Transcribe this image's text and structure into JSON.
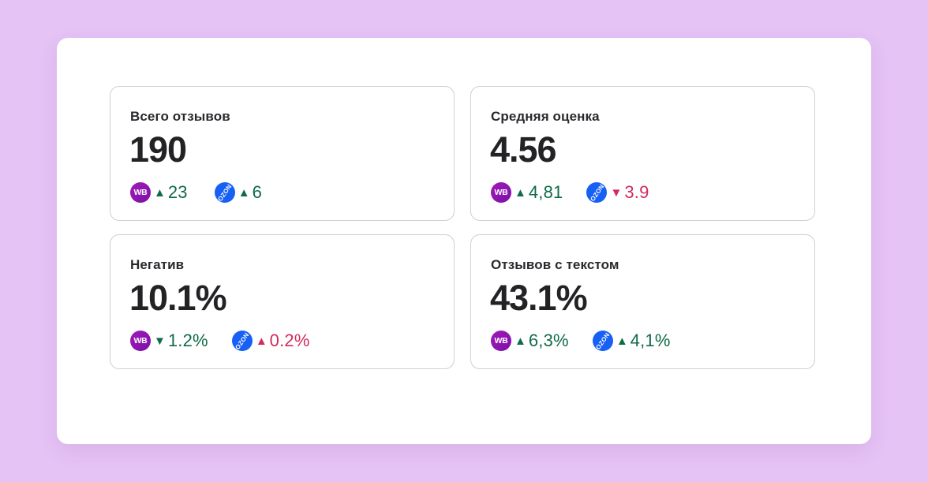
{
  "colors": {
    "background": "#e5c3f5",
    "panel": "#ffffff",
    "wb_badge": "#8e15ad",
    "ozon_badge": "#1660f3",
    "positive": "#0f6b47",
    "negative": "#d22a5a"
  },
  "cards": [
    {
      "title": "Всего отзывов",
      "value": "190",
      "stats": [
        {
          "platform": "WB",
          "direction": "up",
          "arrow": "▲",
          "delta": "23",
          "tone": "positive"
        },
        {
          "platform": "OZON",
          "direction": "up",
          "arrow": "▲",
          "delta": "6",
          "tone": "positive"
        }
      ]
    },
    {
      "title": "Средняя оценка",
      "value": "4.56",
      "stats": [
        {
          "platform": "WB",
          "direction": "up",
          "arrow": "▲",
          "delta": "4,81",
          "tone": "positive"
        },
        {
          "platform": "OZON",
          "direction": "down",
          "arrow": "▼",
          "delta": "3.9",
          "tone": "negative"
        }
      ]
    },
    {
      "title": "Негатив",
      "value": "10.1%",
      "stats": [
        {
          "platform": "WB",
          "direction": "down",
          "arrow": "▼",
          "delta": "1.2%",
          "tone": "positive"
        },
        {
          "platform": "OZON",
          "direction": "up",
          "arrow": "▲",
          "delta": "0.2%",
          "tone": "negative"
        }
      ]
    },
    {
      "title": "Отзывов с текстом",
      "value": "43.1%",
      "stats": [
        {
          "platform": "WB",
          "direction": "up",
          "arrow": "▲",
          "delta": "6,3%",
          "tone": "positive"
        },
        {
          "platform": "OZON",
          "direction": "up",
          "arrow": "▲",
          "delta": "4,1%",
          "tone": "positive"
        }
      ]
    }
  ]
}
